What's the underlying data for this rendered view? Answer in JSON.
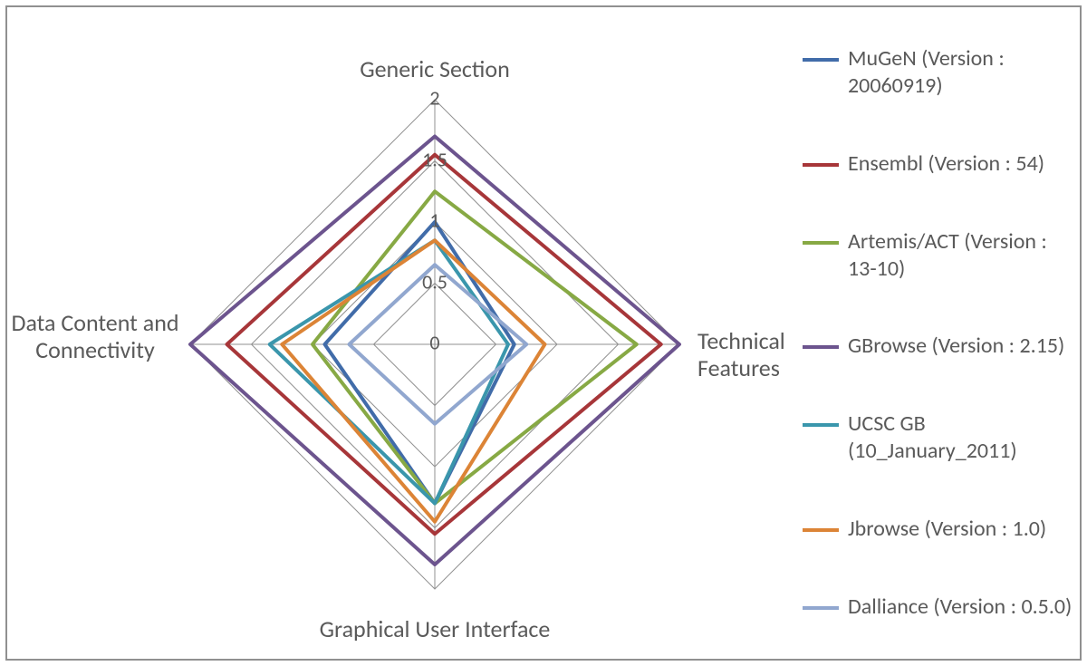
{
  "chart": {
    "type": "radar",
    "background_color": "#ffffff",
    "border_color": "#909090",
    "grid_color": "#919191",
    "grid_stroke_width": 1,
    "tick_font_size": 22,
    "axis_label_font_size": 26,
    "text_color": "#5a5a5a",
    "series_stroke_width": 4,
    "max_value": 2,
    "tick_step": 0.5,
    "ticks": [
      "0",
      "0.5",
      "1",
      "1.5",
      "2"
    ],
    "axes": [
      "Generic Section",
      "Technical Features",
      "Graphical User Interface",
      "Data Content and Connectivity"
    ],
    "series": [
      {
        "label": "MuGeN (Version : 20060919)",
        "color": "#416ca9",
        "values": [
          1.0,
          0.65,
          1.3,
          0.9
        ]
      },
      {
        "label": "Ensembl (Version : 54)",
        "color": "#a73639",
        "values": [
          1.55,
          1.85,
          1.55,
          1.7
        ]
      },
      {
        "label": "Artemis/ACT (Version : 13-10)",
        "color": "#87a944",
        "values": [
          1.25,
          1.65,
          1.3,
          1.0
        ]
      },
      {
        "label": "GBrowse (Version : 2.15)",
        "color": "#6c548e",
        "values": [
          1.7,
          2.0,
          1.8,
          2.0
        ]
      },
      {
        "label": "UCSC GB (10_January_2011)",
        "color": "#3a96ac",
        "values": [
          0.85,
          0.6,
          1.3,
          1.35
        ]
      },
      {
        "label": "Jbrowse (Version : 1.0)",
        "color": "#dc8436",
        "values": [
          0.85,
          0.9,
          1.45,
          1.25
        ]
      },
      {
        "label": "Dalliance (Version : 0.5.0)",
        "color": "#91a7cf",
        "values": [
          0.65,
          0.75,
          0.65,
          0.7
        ]
      }
    ]
  },
  "legend": {
    "font_size": 24,
    "text_color": "#5a5a5a",
    "swatch_width": 40,
    "swatch_height": 4
  }
}
